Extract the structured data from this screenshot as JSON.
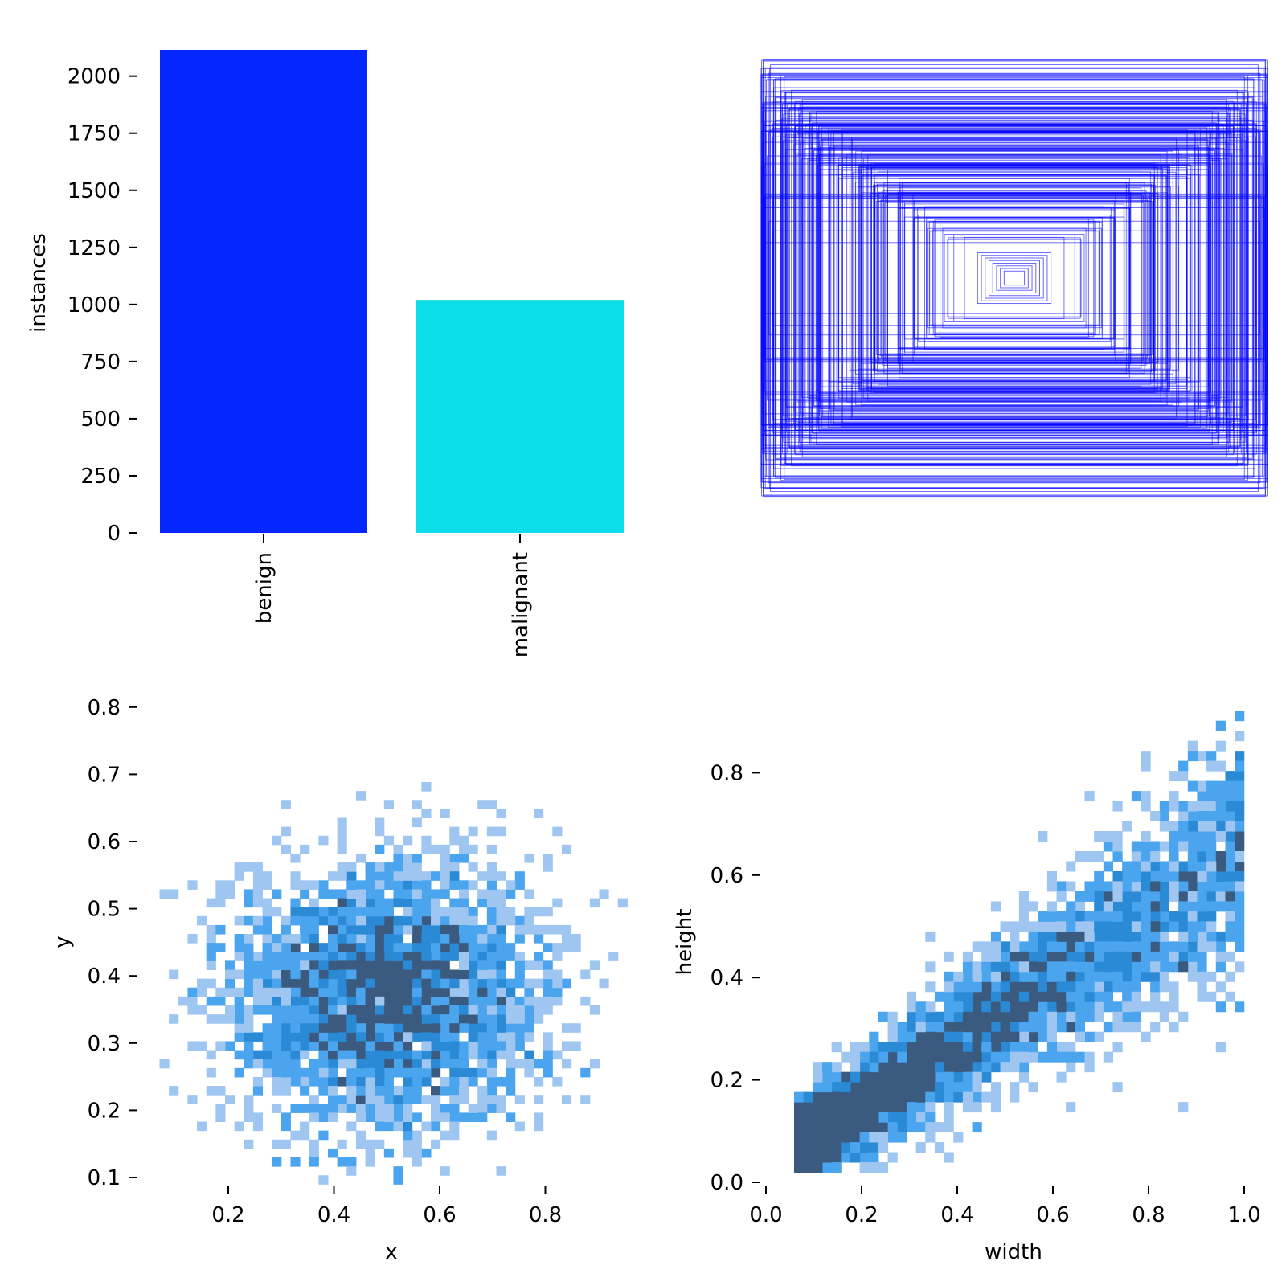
{
  "chart_data": [
    {
      "type": "bar",
      "categories": [
        "benign",
        "malignant"
      ],
      "values": [
        2115,
        1020
      ],
      "colors": [
        "#0626ff",
        "#0ddde8"
      ],
      "xlabel": "",
      "ylabel": "instances",
      "ylim": [
        0,
        2115
      ],
      "yticks": [
        "0",
        "250",
        "500",
        "750",
        "1000",
        "1250",
        "1500",
        "1750",
        "2000"
      ],
      "grid": false
    },
    {
      "type": "other",
      "description_kind": "overlaid bounding boxes centered at (0.5, 0.5), drawn as thin transparent blue rectangle outlines",
      "box_color": "#0000ff",
      "grid": false
    },
    {
      "type": "heatmap",
      "subtype": "2d-histogram",
      "xlabel": "x",
      "ylabel": "y",
      "xticks": [
        "0.2",
        "0.4",
        "0.6",
        "0.8"
      ],
      "yticks": [
        "0.1",
        "0.2",
        "0.3",
        "0.4",
        "0.5",
        "0.6",
        "0.7",
        "0.8"
      ],
      "xlim": [
        0.07,
        0.95
      ],
      "ylim": [
        0.09,
        0.8
      ],
      "center": [
        0.5,
        0.37
      ],
      "colors": [
        "#9ec6f0",
        "#4aa4ee",
        "#2b8ad6",
        "#3a5a80"
      ],
      "grid": false
    },
    {
      "type": "heatmap",
      "subtype": "2d-histogram",
      "xlabel": "width",
      "ylabel": "height",
      "xticks": [
        "0.0",
        "0.2",
        "0.4",
        "0.6",
        "0.8",
        "1.0"
      ],
      "yticks": [
        "0.0",
        "0.2",
        "0.4",
        "0.6",
        "0.8"
      ],
      "xlim": [
        0.0,
        1.0
      ],
      "ylim": [
        0.0,
        0.92
      ],
      "colors": [
        "#9ec6f0",
        "#4aa4ee",
        "#2b8ad6",
        "#3a5a80"
      ],
      "grid": false
    }
  ]
}
